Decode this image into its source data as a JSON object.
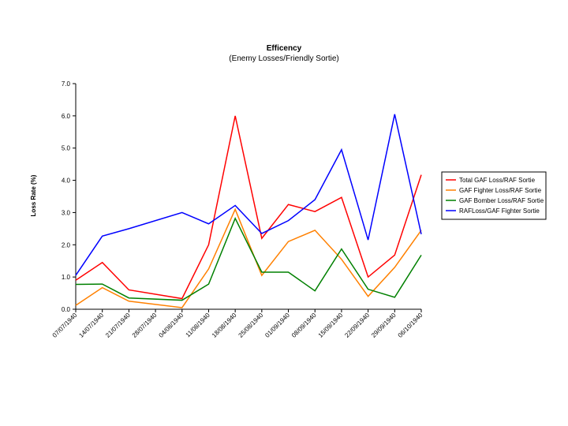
{
  "chart_data": {
    "type": "line",
    "title": "Efficency",
    "subtitle": "(Enemy Losses/Friendly Sortie)",
    "xlabel": "",
    "ylabel": "Loss Rate (%)",
    "ylim": [
      0,
      7
    ],
    "yticks": [
      "0.0",
      "1.0",
      "2.0",
      "3.0",
      "4.0",
      "5.0",
      "6.0",
      "7.0"
    ],
    "x": [
      "07/07/1940",
      "14/07/1940",
      "21/07/1940",
      "28/07/1940",
      "04/08/1940",
      "11/08/1940",
      "18/08/1940",
      "25/08/1940",
      "01/09/1940",
      "08/09/1940",
      "15/09/1940",
      "22/09/1940",
      "29/09/1940",
      "06/10/1940"
    ],
    "grid": false,
    "legend_position": "right",
    "series": [
      {
        "name": "Total GAF Loss/RAF Sortie",
        "color": "#ff0000",
        "points": [
          [
            "07/07/1940",
            0.9
          ],
          [
            "14/07/1940",
            1.45
          ],
          [
            "21/07/1940",
            0.6
          ],
          [
            "04/08/1940",
            0.33
          ],
          [
            "11/08/1940",
            2.0
          ],
          [
            "18/08/1940",
            6.0
          ],
          [
            "25/08/1940",
            2.2
          ],
          [
            "01/09/1940",
            3.25
          ],
          [
            "08/09/1940",
            3.03
          ],
          [
            "15/09/1940",
            3.47
          ],
          [
            "22/09/1940",
            1.0
          ],
          [
            "29/09/1940",
            1.68
          ],
          [
            "06/10/1940",
            4.17
          ]
        ]
      },
      {
        "name": "GAF Fighter Loss/RAF Sortie",
        "color": "#ff8000",
        "points": [
          [
            "07/07/1940",
            0.12
          ],
          [
            "14/07/1940",
            0.67
          ],
          [
            "21/07/1940",
            0.25
          ],
          [
            "04/08/1940",
            0.05
          ],
          [
            "11/08/1940",
            1.25
          ],
          [
            "18/08/1940",
            3.1
          ],
          [
            "25/08/1940",
            1.05
          ],
          [
            "01/09/1940",
            2.1
          ],
          [
            "08/09/1940",
            2.45
          ],
          [
            "15/09/1940",
            1.55
          ],
          [
            "22/09/1940",
            0.4
          ],
          [
            "29/09/1940",
            1.3
          ],
          [
            "06/10/1940",
            2.45
          ]
        ]
      },
      {
        "name": "GAF Bomber Loss/RAF Sortie",
        "color": "#008000",
        "points": [
          [
            "07/07/1940",
            0.77
          ],
          [
            "14/07/1940",
            0.78
          ],
          [
            "21/07/1940",
            0.35
          ],
          [
            "04/08/1940",
            0.28
          ],
          [
            "11/08/1940",
            0.78
          ],
          [
            "18/08/1940",
            2.82
          ],
          [
            "25/08/1940",
            1.15
          ],
          [
            "01/09/1940",
            1.15
          ],
          [
            "08/09/1940",
            0.57
          ],
          [
            "15/09/1940",
            1.87
          ],
          [
            "22/09/1940",
            0.62
          ],
          [
            "29/09/1940",
            0.37
          ],
          [
            "06/10/1940",
            1.68
          ]
        ]
      },
      {
        "name": "RAFLoss/GAF Fighter Sortie",
        "color": "#0000ff",
        "points": [
          [
            "07/07/1940",
            1.05
          ],
          [
            "14/07/1940",
            2.27
          ],
          [
            "21/07/1940",
            2.5
          ],
          [
            "04/08/1940",
            3.0
          ],
          [
            "11/08/1940",
            2.65
          ],
          [
            "18/08/1940",
            3.22
          ],
          [
            "25/08/1940",
            2.35
          ],
          [
            "01/09/1940",
            2.75
          ],
          [
            "08/09/1940",
            3.4
          ],
          [
            "15/09/1940",
            4.95
          ],
          [
            "22/09/1940",
            2.15
          ],
          [
            "29/09/1940",
            6.05
          ],
          [
            "06/10/1940",
            2.33
          ]
        ]
      }
    ]
  }
}
